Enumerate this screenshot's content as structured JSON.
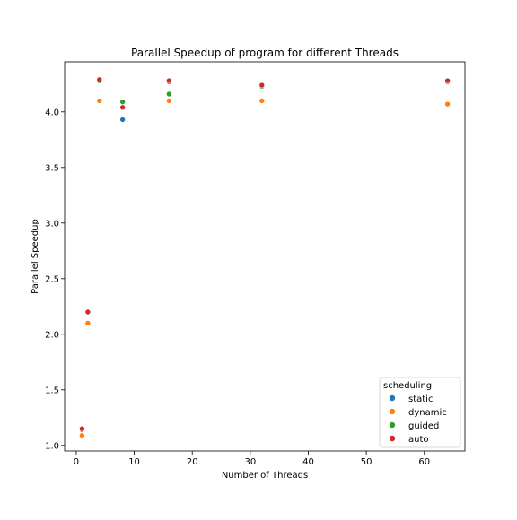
{
  "chart_data": {
    "type": "scatter",
    "title": "Parallel Speedup of program for different Threads",
    "xlabel": "Number of Threads",
    "ylabel": "Parallel Speedup",
    "xlim": [
      -2,
      67
    ],
    "ylim": [
      0.95,
      4.45
    ],
    "xticks": [
      0,
      10,
      20,
      30,
      40,
      50,
      60
    ],
    "yticks": [
      1.0,
      1.5,
      2.0,
      2.5,
      3.0,
      3.5,
      4.0
    ],
    "grid": false,
    "legend": {
      "title": "scheduling",
      "position": "lower-right"
    },
    "series": [
      {
        "name": "static",
        "color": "#1f77b4",
        "points": [
          {
            "x": 1,
            "y": 1.15
          },
          {
            "x": 2,
            "y": 2.2
          },
          {
            "x": 4,
            "y": 4.29
          },
          {
            "x": 8,
            "y": 3.93
          },
          {
            "x": 16,
            "y": 4.27
          },
          {
            "x": 32,
            "y": 4.24
          },
          {
            "x": 64,
            "y": 4.27
          }
        ]
      },
      {
        "name": "dynamic",
        "color": "#ff7f0e",
        "points": [
          {
            "x": 1,
            "y": 1.09
          },
          {
            "x": 2,
            "y": 2.1
          },
          {
            "x": 4,
            "y": 4.1
          },
          {
            "x": 8,
            "y": 4.04
          },
          {
            "x": 16,
            "y": 4.1
          },
          {
            "x": 32,
            "y": 4.1
          },
          {
            "x": 64,
            "y": 4.07
          }
        ]
      },
      {
        "name": "guided",
        "color": "#2ca02c",
        "points": [
          {
            "x": 1,
            "y": 1.14
          },
          {
            "x": 2,
            "y": 2.2
          },
          {
            "x": 4,
            "y": 4.28
          },
          {
            "x": 8,
            "y": 4.09
          },
          {
            "x": 16,
            "y": 4.16
          },
          {
            "x": 32,
            "y": 4.23
          },
          {
            "x": 64,
            "y": 4.27
          }
        ]
      },
      {
        "name": "auto",
        "color": "#d62728",
        "points": [
          {
            "x": 1,
            "y": 1.15
          },
          {
            "x": 2,
            "y": 2.2
          },
          {
            "x": 4,
            "y": 4.29
          },
          {
            "x": 8,
            "y": 4.04
          },
          {
            "x": 16,
            "y": 4.28
          },
          {
            "x": 32,
            "y": 4.24
          },
          {
            "x": 64,
            "y": 4.28
          }
        ]
      }
    ]
  }
}
